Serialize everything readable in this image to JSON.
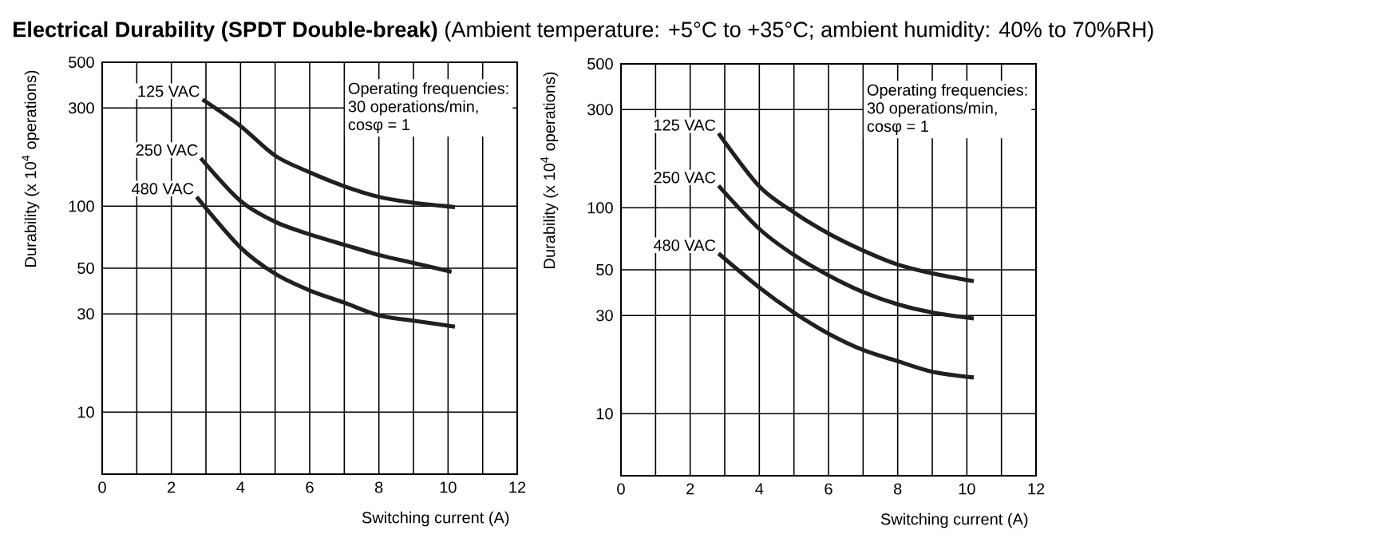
{
  "chart_data": [
    {
      "type": "line",
      "title": "**Electrical Durability (SPDT Double-break)** (Ambient temperature: +5°C to +35°C; ambient humidity: 40% to 70%RH)",
      "xlabel": "Switching current (A)",
      "ylabel": "Durability (x 10$^{4}$ operations)",
      "xlim": [
        0,
        12
      ],
      "xticks": [
        0,
        {
          "value": 1,
          "label": null
        },
        2,
        {
          "value": 3,
          "label": null
        },
        4,
        {
          "value": 5,
          "label": null
        },
        6,
        {
          "value": 7,
          "label": null
        },
        8,
        {
          "value": 9,
          "label": null
        },
        10,
        {
          "value": 11,
          "label": null
        },
        12
      ],
      "ylim": [
        5,
        500
      ],
      "yticks": [
        10,
        30,
        50,
        100,
        300,
        500
      ],
      "log": "y",
      "grid": true,
      "legend": false,
      "annotations": [
        "Operating frequencies:",
        "30 operations/min,",
        "cosφ = 1"
      ],
      "series": [
        {
          "name": "125 VAC",
          "color": "#231f20",
          "x": [
            2.9,
            4,
            5,
            6,
            7,
            8,
            9,
            10.2
          ],
          "values": [
            330,
            245,
            176,
            146,
            125,
            111,
            104,
            99
          ]
        },
        {
          "name": "250 VAC",
          "color": "#231f20",
          "x": [
            2.85,
            4,
            5,
            6,
            7,
            8,
            9,
            10.1
          ],
          "values": [
            171,
            106,
            84,
            73,
            65,
            58,
            53,
            48
          ]
        },
        {
          "name": "480 VAC",
          "color": "#231f20",
          "x": [
            2.73,
            4,
            5,
            6,
            7,
            8,
            9,
            10.2
          ],
          "values": [
            111,
            63,
            47,
            39,
            34,
            29.5,
            27.8,
            26
          ]
        }
      ]
    },
    {
      "type": "line",
      "xlabel": "Switching current (A)",
      "ylabel": "Durability (x 10$^{4}$ operations)",
      "xlim": [
        0,
        12
      ],
      "xticks": [
        0,
        {
          "value": 1,
          "label": null
        },
        2,
        {
          "value": 3,
          "label": null
        },
        4,
        {
          "value": 5,
          "label": null
        },
        6,
        {
          "value": 7,
          "label": null
        },
        8,
        {
          "value": 9,
          "label": null
        },
        10,
        {
          "value": 11,
          "label": null
        },
        12
      ],
      "ylim": [
        5,
        500
      ],
      "yticks": [
        10,
        30,
        50,
        100,
        300,
        500
      ],
      "log": "y",
      "grid": true,
      "legend": false,
      "annotations": [
        "Operating frequencies:",
        "30 operations/min,",
        "cosφ = 1"
      ],
      "series": [
        {
          "name": "125 VAC",
          "color": "#231f20",
          "x": [
            2.82,
            4,
            5,
            6,
            7,
            8,
            9,
            10.2
          ],
          "values": [
            230,
            127,
            95,
            75,
            62,
            53,
            48,
            44
          ]
        },
        {
          "name": "250 VAC",
          "color": "#231f20",
          "x": [
            2.82,
            4,
            5,
            6,
            7,
            8,
            9,
            10.2
          ],
          "values": [
            128,
            79,
            59,
            47,
            39,
            34,
            31,
            29
          ]
        },
        {
          "name": "480 VAC",
          "color": "#231f20",
          "x": [
            2.82,
            4,
            5,
            6,
            7,
            8,
            9,
            10.2
          ],
          "values": [
            60,
            41,
            31,
            24.5,
            20.4,
            18,
            16,
            15
          ]
        }
      ]
    }
  ]
}
